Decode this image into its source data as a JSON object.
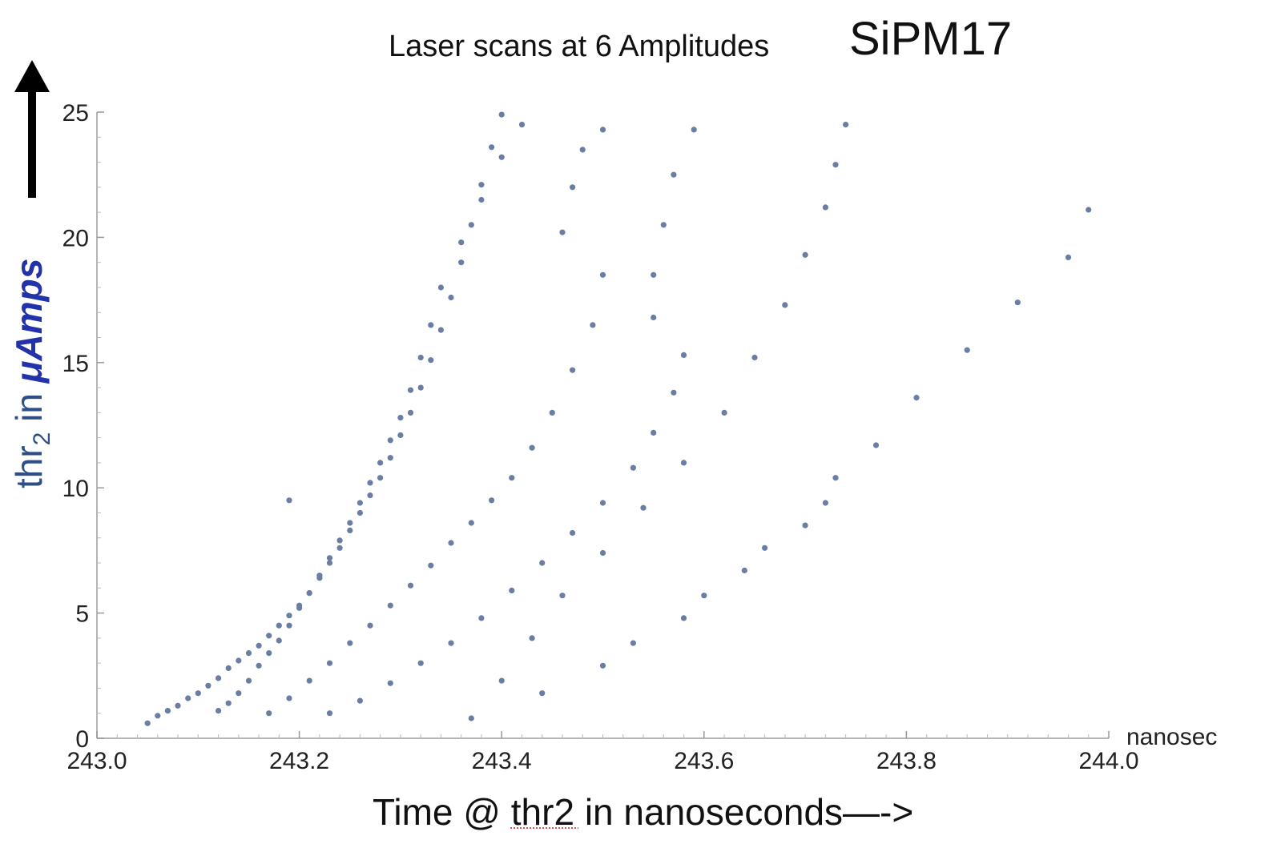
{
  "title": "Laser scans at 6 Amplitudes",
  "device": "SiPM17",
  "colors": {
    "points": "#6a7da3",
    "ylabel_thr": "#2b4f86",
    "ylabel_units": "#2232a8",
    "axis": "#b5b5b5"
  },
  "chart_data": {
    "type": "scatter",
    "title": "Laser scans at 6 Amplitudes",
    "subtitle": "SiPM17",
    "xlabel": "Time @ thr2 in nanoseconds—->",
    "x_unit": "nanosec",
    "ylabel_parts": {
      "thr": "thr",
      "sub": "2",
      "in": " in ",
      "units": "μAmps"
    },
    "xlim": [
      243.0,
      244.0
    ],
    "ylim": [
      0,
      25
    ],
    "x_ticks": [
      "243.0",
      "243.2",
      "243.4",
      "243.6",
      "243.8",
      "244.0"
    ],
    "y_ticks": [
      "0",
      "5",
      "10",
      "15",
      "20",
      "25"
    ],
    "grid": false,
    "series": [
      {
        "points": [
          [
            243.05,
            0.6
          ],
          [
            243.06,
            0.9
          ],
          [
            243.07,
            1.1
          ],
          [
            243.08,
            1.3
          ],
          [
            243.09,
            1.6
          ],
          [
            243.1,
            1.8
          ],
          [
            243.11,
            2.1
          ],
          [
            243.12,
            2.4
          ],
          [
            243.13,
            2.8
          ],
          [
            243.14,
            3.1
          ],
          [
            243.15,
            3.4
          ],
          [
            243.16,
            3.7
          ],
          [
            243.17,
            4.1
          ],
          [
            243.18,
            4.5
          ],
          [
            243.19,
            4.9
          ],
          [
            243.2,
            5.3
          ],
          [
            243.21,
            5.8
          ],
          [
            243.22,
            6.4
          ],
          [
            243.23,
            7.0
          ],
          [
            243.24,
            7.6
          ],
          [
            243.25,
            8.3
          ],
          [
            243.26,
            9.0
          ],
          [
            243.27,
            9.7
          ],
          [
            243.28,
            10.4
          ],
          [
            243.29,
            11.2
          ],
          [
            243.3,
            12.1
          ],
          [
            243.31,
            13.0
          ],
          [
            243.32,
            14.0
          ],
          [
            243.33,
            15.1
          ],
          [
            243.34,
            16.3
          ],
          [
            243.35,
            17.6
          ],
          [
            243.36,
            19.0
          ],
          [
            243.37,
            20.5
          ],
          [
            243.38,
            22.1
          ],
          [
            243.39,
            23.6
          ],
          [
            243.4,
            24.9
          ]
        ]
      },
      {
        "points": [
          [
            243.12,
            1.1
          ],
          [
            243.13,
            1.4
          ],
          [
            243.14,
            1.8
          ],
          [
            243.15,
            2.3
          ],
          [
            243.16,
            2.9
          ],
          [
            243.17,
            3.4
          ],
          [
            243.18,
            3.9
          ],
          [
            243.19,
            4.5
          ],
          [
            243.2,
            5.2
          ],
          [
            243.21,
            5.8
          ],
          [
            243.22,
            6.5
          ],
          [
            243.23,
            7.2
          ],
          [
            243.24,
            7.9
          ],
          [
            243.25,
            8.6
          ],
          [
            243.26,
            9.4
          ],
          [
            243.27,
            10.2
          ],
          [
            243.28,
            11.0
          ],
          [
            243.29,
            11.9
          ],
          [
            243.3,
            12.8
          ],
          [
            243.31,
            13.9
          ],
          [
            243.32,
            15.2
          ],
          [
            243.33,
            16.5
          ],
          [
            243.34,
            18.0
          ],
          [
            243.36,
            19.8
          ],
          [
            243.38,
            21.5
          ],
          [
            243.4,
            23.2
          ],
          [
            243.42,
            24.5
          ]
        ]
      },
      {
        "points": [
          [
            243.17,
            1.0
          ],
          [
            243.19,
            1.6
          ],
          [
            243.21,
            2.3
          ],
          [
            243.23,
            3.0
          ],
          [
            243.25,
            3.8
          ],
          [
            243.27,
            4.5
          ],
          [
            243.29,
            5.3
          ],
          [
            243.31,
            6.1
          ],
          [
            243.33,
            6.9
          ],
          [
            243.35,
            7.8
          ],
          [
            243.37,
            8.6
          ],
          [
            243.39,
            9.5
          ],
          [
            243.41,
            10.4
          ],
          [
            243.43,
            11.6
          ],
          [
            243.45,
            13.0
          ],
          [
            243.47,
            14.7
          ],
          [
            243.49,
            16.5
          ],
          [
            243.5,
            18.5
          ],
          [
            243.46,
            20.2
          ],
          [
            243.47,
            22.0
          ],
          [
            243.48,
            23.5
          ],
          [
            243.5,
            24.3
          ]
        ]
      },
      {
        "points": [
          [
            243.23,
            1.0
          ],
          [
            243.26,
            1.5
          ],
          [
            243.29,
            2.2
          ],
          [
            243.32,
            3.0
          ],
          [
            243.35,
            3.8
          ],
          [
            243.38,
            4.8
          ],
          [
            243.41,
            5.9
          ],
          [
            243.44,
            7.0
          ],
          [
            243.47,
            8.2
          ],
          [
            243.5,
            9.4
          ],
          [
            243.53,
            10.8
          ],
          [
            243.55,
            12.2
          ],
          [
            243.57,
            13.8
          ],
          [
            243.58,
            15.3
          ],
          [
            243.55,
            16.8
          ],
          [
            243.55,
            18.5
          ],
          [
            243.56,
            20.5
          ],
          [
            243.57,
            22.5
          ],
          [
            243.59,
            24.3
          ]
        ]
      },
      {
        "points": [
          [
            243.37,
            0.8
          ],
          [
            243.4,
            2.3
          ],
          [
            243.43,
            4.0
          ],
          [
            243.46,
            5.7
          ],
          [
            243.5,
            7.4
          ],
          [
            243.54,
            9.2
          ],
          [
            243.58,
            11.0
          ],
          [
            243.62,
            13.0
          ],
          [
            243.65,
            15.2
          ],
          [
            243.68,
            17.3
          ],
          [
            243.7,
            19.3
          ],
          [
            243.72,
            21.2
          ],
          [
            243.73,
            22.9
          ],
          [
            243.74,
            24.5
          ]
        ]
      },
      {
        "points": [
          [
            243.44,
            1.8
          ],
          [
            243.5,
            2.9
          ],
          [
            243.53,
            3.8
          ],
          [
            243.58,
            4.8
          ],
          [
            243.6,
            5.7
          ],
          [
            243.64,
            6.7
          ],
          [
            243.66,
            7.6
          ],
          [
            243.7,
            8.5
          ],
          [
            243.72,
            9.4
          ],
          [
            243.73,
            10.4
          ],
          [
            243.77,
            11.7
          ],
          [
            243.81,
            13.6
          ],
          [
            243.86,
            15.5
          ],
          [
            243.91,
            17.4
          ],
          [
            243.96,
            19.2
          ],
          [
            243.98,
            21.1
          ]
        ]
      },
      {
        "points": [
          [
            243.19,
            9.5
          ]
        ]
      }
    ]
  }
}
